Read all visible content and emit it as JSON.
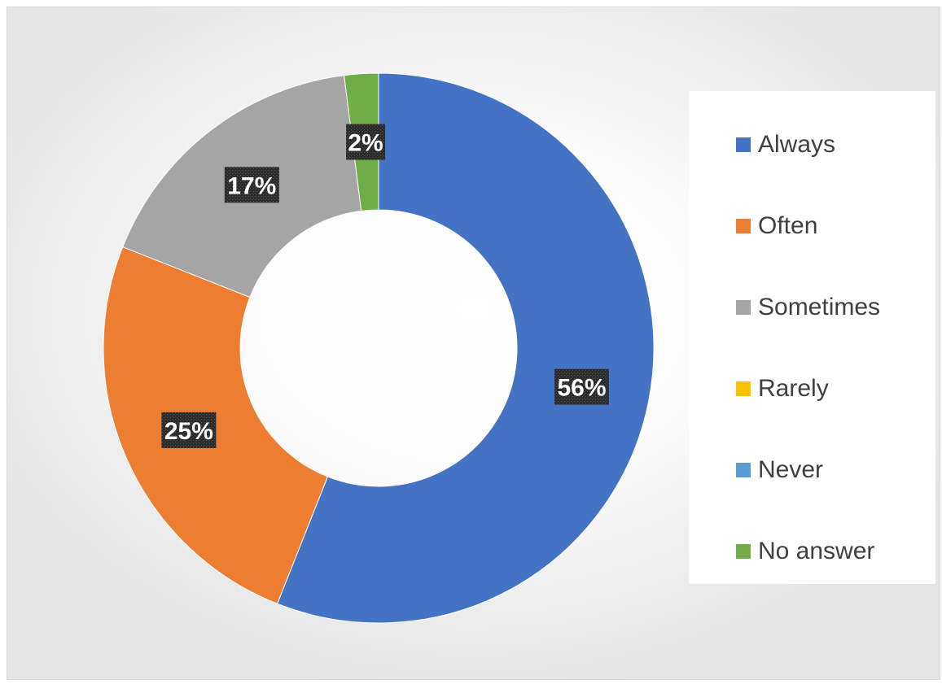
{
  "chart_data": {
    "type": "doughnut",
    "title": "",
    "categories": [
      "Always",
      "Often",
      "Sometimes",
      "Rarely",
      "Never",
      "No answer"
    ],
    "values": [
      56,
      25,
      17,
      0,
      0,
      2
    ],
    "unit": "%",
    "data_labels": [
      "56%",
      "25%",
      "17%",
      "",
      "",
      "2%"
    ],
    "colors": [
      "#4472C4",
      "#ED7D31",
      "#A5A5A5",
      "#FFC000",
      "#5B9BD5",
      "#70AD47"
    ],
    "legend_position": "right",
    "label_style": "white bold text on dark box"
  }
}
